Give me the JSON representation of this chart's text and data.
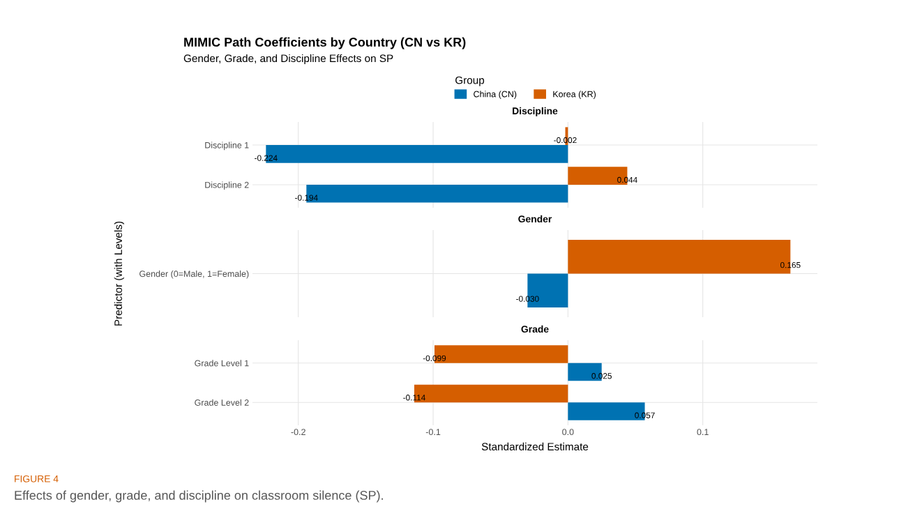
{
  "chart_data": [
    {
      "type": "bar",
      "orientation": "horizontal",
      "title": "Discipline",
      "annotations": [
        "MIMIC Path Coefficients by Country (CN vs KR)",
        "Gender, Grade, and Discipline Effects on SP"
      ],
      "legend_title": "Group",
      "legend": "top",
      "grid": true,
      "tick_labels": "y",
      "categories": [
        "Discipline 1",
        "Discipline 2"
      ],
      "xlim": [
        -0.234,
        0.185
      ],
      "xticks": [
        -0.2,
        -0.1,
        0.0,
        0.1
      ],
      "series": [
        {
          "name": "China (CN)",
          "color": "#0072b2",
          "values": [
            -0.224,
            -0.194
          ],
          "value_labels": [
            "-0.224",
            "-0.194"
          ]
        },
        {
          "name": "Korea (KR)",
          "color": "#d55e00",
          "values": [
            -0.002,
            0.044
          ],
          "value_labels": [
            "-0.002",
            "0.044"
          ]
        }
      ]
    },
    {
      "type": "bar",
      "orientation": "horizontal",
      "title": "Gender",
      "ylabel": "Predictor (with Levels)",
      "grid": true,
      "tick_labels": "y",
      "categories": [
        "Gender (0=Male, 1=Female)"
      ],
      "xlim": [
        -0.234,
        0.185
      ],
      "xticks": [
        -0.2,
        -0.1,
        0.0,
        0.1
      ],
      "series": [
        {
          "color": "#0072b2",
          "values": [
            -0.03
          ],
          "value_labels": [
            "-0.030"
          ]
        },
        {
          "color": "#d55e00",
          "values": [
            0.165
          ],
          "value_labels": [
            "0.165"
          ]
        }
      ]
    },
    {
      "type": "bar",
      "orientation": "horizontal",
      "title": "Grade",
      "xlabel": "Standardized Estimate",
      "grid": true,
      "annotations": [
        "FIGURE 4",
        "Effects of gender, grade, and discipline on classroom silence (SP)."
      ],
      "categories": [
        "Grade Level 1",
        "Grade Level 2"
      ],
      "xlim": [
        -0.234,
        0.185
      ],
      "xticks": [
        {
          "value": -0.2,
          "label": "-0.2"
        },
        {
          "value": -0.1,
          "label": "-0.1"
        },
        {
          "value": 0.0,
          "label": "0.0"
        },
        {
          "value": 0.1,
          "label": "0.1"
        }
      ],
      "series": [
        {
          "color": "#0072b2",
          "values": [
            0.025,
            0.057
          ],
          "value_labels": [
            "0.025",
            "0.057"
          ]
        },
        {
          "color": "#d55e00",
          "values": [
            -0.099,
            -0.114
          ],
          "value_labels": [
            "-0.099",
            "-0.114"
          ]
        }
      ]
    }
  ]
}
